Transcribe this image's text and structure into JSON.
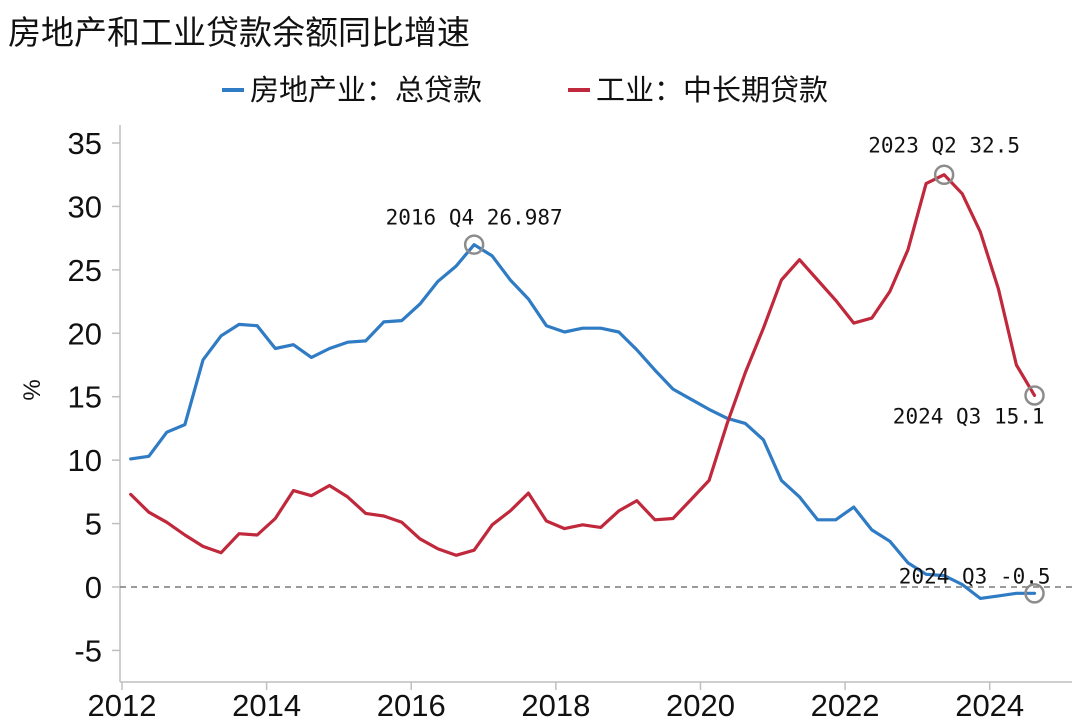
{
  "chart_data": {
    "type": "line",
    "title": "房地产和工业贷款余额同比增速",
    "ylabel": "%",
    "xlabel": "",
    "ylim": [
      -7,
      36
    ],
    "xlim": [
      2012,
      2025
    ],
    "yticks": [
      -5,
      0,
      5,
      10,
      15,
      20,
      25,
      30,
      35
    ],
    "xticks": [
      2012,
      2014,
      2016,
      2018,
      2020,
      2022,
      2024
    ],
    "grid": false,
    "legend_position": "top-center",
    "reference_line": 0,
    "series": [
      {
        "name": "房地产业：总贷款",
        "color": "#2f7bc4",
        "points": [
          [
            2012.12,
            10.1
          ],
          [
            2012.37,
            10.3
          ],
          [
            2012.62,
            12.2
          ],
          [
            2012.87,
            12.8
          ],
          [
            2013.12,
            17.9
          ],
          [
            2013.37,
            19.8
          ],
          [
            2013.62,
            20.7
          ],
          [
            2013.87,
            20.6
          ],
          [
            2014.12,
            18.8
          ],
          [
            2014.37,
            19.1
          ],
          [
            2014.62,
            18.1
          ],
          [
            2014.87,
            18.8
          ],
          [
            2015.12,
            19.3
          ],
          [
            2015.37,
            19.4
          ],
          [
            2015.62,
            20.9
          ],
          [
            2015.87,
            21.0
          ],
          [
            2016.12,
            22.3
          ],
          [
            2016.37,
            24.1
          ],
          [
            2016.62,
            25.3
          ],
          [
            2016.87,
            26.987
          ],
          [
            2017.12,
            26.1
          ],
          [
            2017.37,
            24.2
          ],
          [
            2017.62,
            22.7
          ],
          [
            2017.87,
            20.6
          ],
          [
            2018.12,
            20.1
          ],
          [
            2018.37,
            20.4
          ],
          [
            2018.62,
            20.4
          ],
          [
            2018.87,
            20.1
          ],
          [
            2019.12,
            18.7
          ],
          [
            2019.37,
            17.1
          ],
          [
            2019.62,
            15.6
          ],
          [
            2019.87,
            14.8
          ],
          [
            2020.12,
            14.0
          ],
          [
            2020.37,
            13.3
          ],
          [
            2020.62,
            12.9
          ],
          [
            2020.87,
            11.6
          ],
          [
            2021.12,
            8.4
          ],
          [
            2021.37,
            7.1
          ],
          [
            2021.62,
            5.3
          ],
          [
            2021.87,
            5.3
          ],
          [
            2022.12,
            6.3
          ],
          [
            2022.37,
            4.5
          ],
          [
            2022.62,
            3.6
          ],
          [
            2022.87,
            1.9
          ],
          [
            2023.12,
            1.0
          ],
          [
            2023.37,
            0.9
          ],
          [
            2023.62,
            0.2
          ],
          [
            2023.87,
            -0.9
          ],
          [
            2024.12,
            -0.7
          ],
          [
            2024.37,
            -0.5
          ],
          [
            2024.62,
            -0.5
          ]
        ]
      },
      {
        "name": "工业：中长期贷款",
        "color": "#c0283c",
        "points": [
          [
            2012.12,
            7.3
          ],
          [
            2012.37,
            5.9
          ],
          [
            2012.62,
            5.1
          ],
          [
            2012.87,
            4.1
          ],
          [
            2013.12,
            3.2
          ],
          [
            2013.37,
            2.7
          ],
          [
            2013.62,
            4.2
          ],
          [
            2013.87,
            4.1
          ],
          [
            2014.12,
            5.4
          ],
          [
            2014.37,
            7.6
          ],
          [
            2014.62,
            7.2
          ],
          [
            2014.87,
            8.0
          ],
          [
            2015.12,
            7.1
          ],
          [
            2015.37,
            5.8
          ],
          [
            2015.62,
            5.6
          ],
          [
            2015.87,
            5.1
          ],
          [
            2016.12,
            3.8
          ],
          [
            2016.37,
            3.0
          ],
          [
            2016.62,
            2.5
          ],
          [
            2016.87,
            2.9
          ],
          [
            2017.12,
            4.9
          ],
          [
            2017.37,
            6.0
          ],
          [
            2017.62,
            7.4
          ],
          [
            2017.87,
            5.2
          ],
          [
            2018.12,
            4.6
          ],
          [
            2018.37,
            4.9
          ],
          [
            2018.62,
            4.7
          ],
          [
            2018.87,
            6.0
          ],
          [
            2019.12,
            6.8
          ],
          [
            2019.37,
            5.3
          ],
          [
            2019.62,
            5.4
          ],
          [
            2019.87,
            6.9
          ],
          [
            2020.12,
            8.4
          ],
          [
            2020.37,
            12.9
          ],
          [
            2020.62,
            16.9
          ],
          [
            2020.87,
            20.4
          ],
          [
            2021.12,
            24.2
          ],
          [
            2021.37,
            25.8
          ],
          [
            2021.62,
            24.2
          ],
          [
            2021.87,
            22.6
          ],
          [
            2022.12,
            20.8
          ],
          [
            2022.37,
            21.2
          ],
          [
            2022.62,
            23.3
          ],
          [
            2022.87,
            26.6
          ],
          [
            2023.12,
            31.8
          ],
          [
            2023.37,
            32.5
          ],
          [
            2023.62,
            31.0
          ],
          [
            2023.87,
            28.0
          ],
          [
            2024.12,
            23.5
          ],
          [
            2024.37,
            17.5
          ],
          [
            2024.62,
            15.1
          ]
        ]
      }
    ],
    "annotations": [
      {
        "label": "2016 Q4 26.987",
        "x": 2016.87,
        "y": 26.987,
        "series": 0
      },
      {
        "label": "2023 Q2 32.5",
        "x": 2023.37,
        "y": 32.5,
        "series": 1
      },
      {
        "label": "2024 Q3 15.1",
        "x": 2024.62,
        "y": 15.1,
        "series": 1
      },
      {
        "label": "2024 Q3 -0.5",
        "x": 2024.62,
        "y": -0.5,
        "series": 0
      }
    ]
  }
}
